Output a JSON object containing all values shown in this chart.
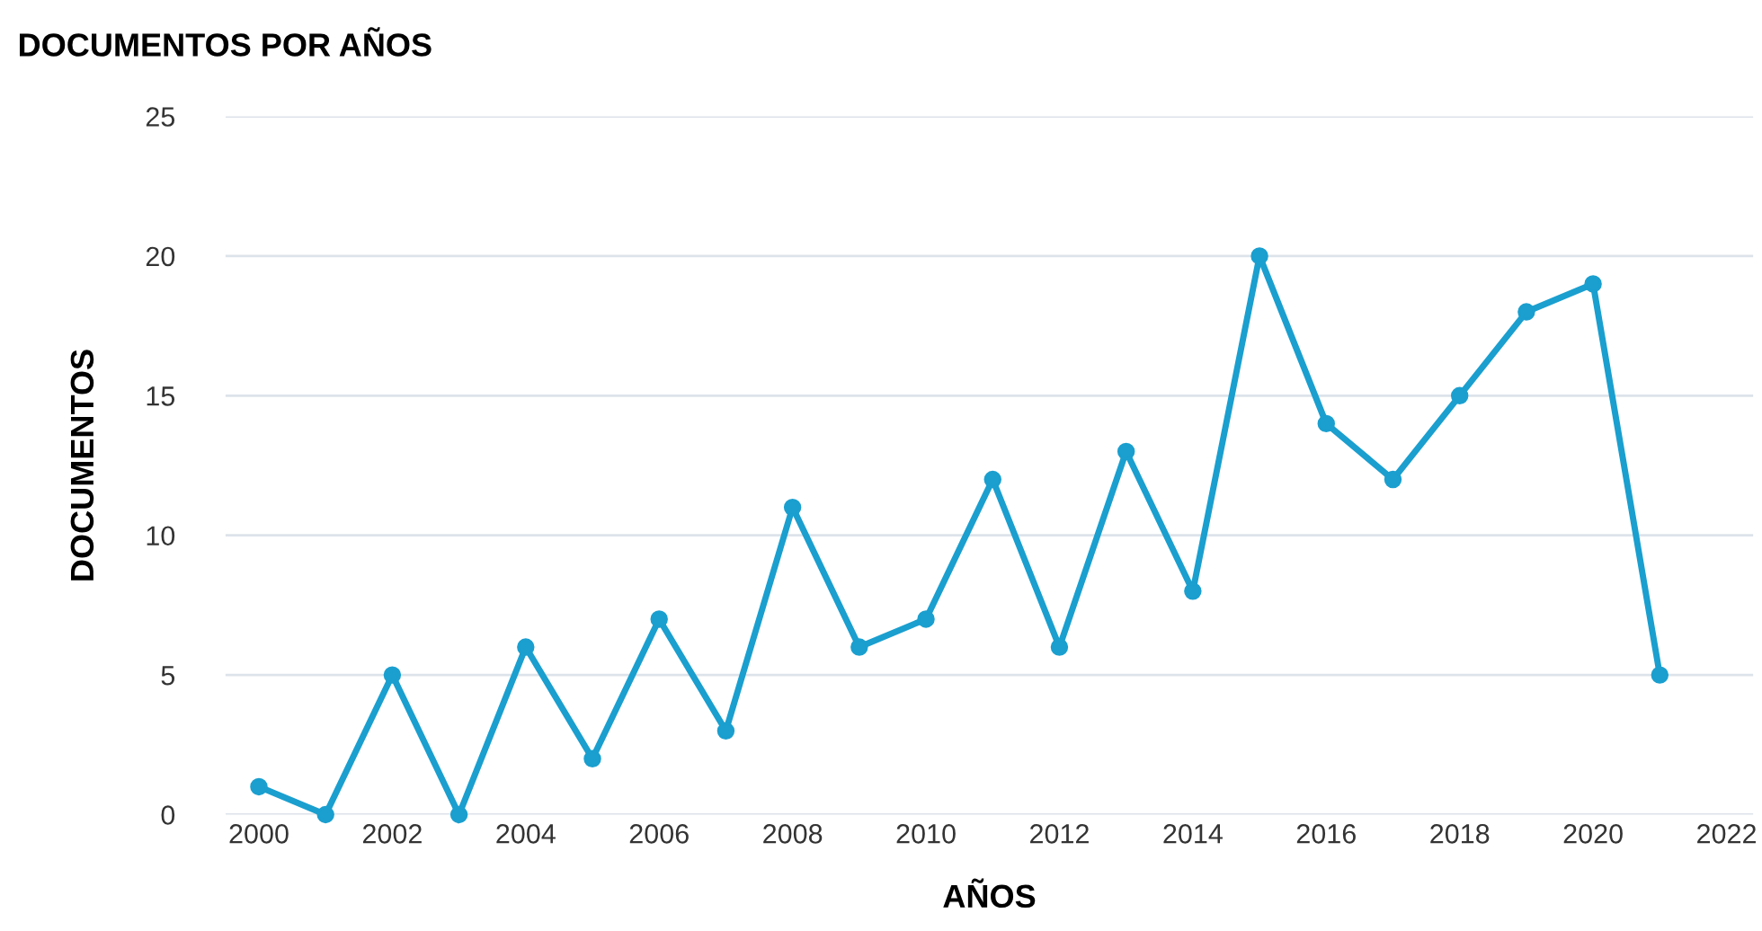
{
  "chart_data": {
    "type": "line",
    "title": "DOCUMENTOS POR AÑOS",
    "xlabel": "AÑOS",
    "ylabel": "DOCUMENTOS",
    "x": [
      2000,
      2001,
      2002,
      2003,
      2004,
      2005,
      2006,
      2007,
      2008,
      2009,
      2010,
      2011,
      2012,
      2013,
      2014,
      2015,
      2016,
      2017,
      2018,
      2019,
      2020,
      2021
    ],
    "series": [
      {
        "color": "#1a9fcf",
        "values": [
          1,
          0,
          5,
          0,
          6,
          2,
          7,
          3,
          11,
          6,
          7,
          12,
          6,
          13,
          8,
          20,
          14,
          12,
          15,
          18,
          19,
          5
        ]
      }
    ],
    "xlim": [
      1999.5,
      2022.4
    ],
    "xticks": [
      2000,
      2002,
      2004,
      2006,
      2008,
      2010,
      2012,
      2014,
      2016,
      2018,
      2020,
      2022
    ],
    "ylim": [
      0,
      25
    ],
    "yticks": [
      0,
      5,
      10,
      15,
      20,
      25
    ],
    "grid": "y",
    "marker": "circle",
    "line_style": "solid"
  }
}
